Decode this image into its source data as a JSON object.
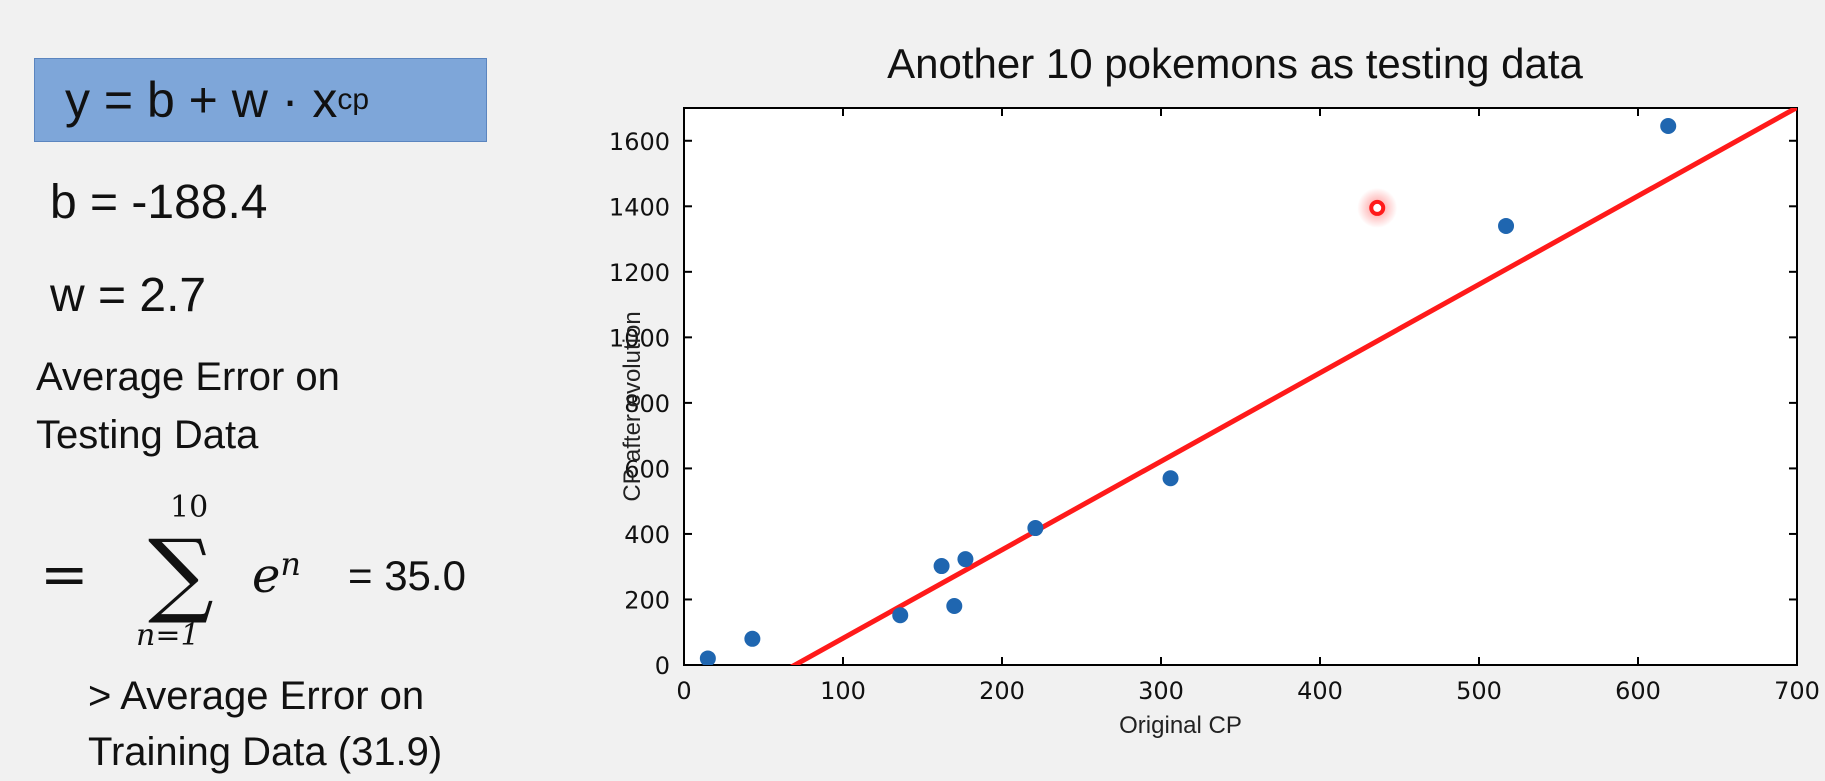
{
  "formula": {
    "lhs": "y = b + w · x",
    "sub": "cp"
  },
  "params": {
    "b": "b = -188.4",
    "w": "w = 2.7"
  },
  "avg_error": {
    "line1": "Average Error on",
    "line2": "Testing Data",
    "eq": "=",
    "upper": "10",
    "lower": "n=1",
    "term": "e",
    "term_sup": "n",
    "value": "= 35.0"
  },
  "comparison": {
    "line1": "> Average Error on",
    "line2": "Training Data (31.9)"
  },
  "chart_data": {
    "type": "scatter",
    "title": "Another 10 pokemons as testing data",
    "xlabel": "Original CP",
    "ylabel": "CP after evolution",
    "xlim": [
      0,
      700
    ],
    "ylim": [
      0,
      1700
    ],
    "xticks": [
      0,
      100,
      200,
      300,
      400,
      500,
      600,
      700
    ],
    "yticks": [
      0,
      200,
      400,
      600,
      800,
      1000,
      1200,
      1400,
      1600
    ],
    "points": [
      {
        "x": 15,
        "y": 20
      },
      {
        "x": 43,
        "y": 80
      },
      {
        "x": 136,
        "y": 152
      },
      {
        "x": 162,
        "y": 302
      },
      {
        "x": 170,
        "y": 180
      },
      {
        "x": 177,
        "y": 323
      },
      {
        "x": 221,
        "y": 418
      },
      {
        "x": 306,
        "y": 570
      },
      {
        "x": 517,
        "y": 1340
      },
      {
        "x": 619,
        "y": 1645
      }
    ],
    "highlight": {
      "x": 436,
      "y": 1395
    },
    "fit_line": {
      "b": -188.4,
      "w": 2.7
    },
    "colors": {
      "points": "#1f66b0",
      "line": "#ff1a1a",
      "highlight": "#ff1a1a"
    }
  }
}
